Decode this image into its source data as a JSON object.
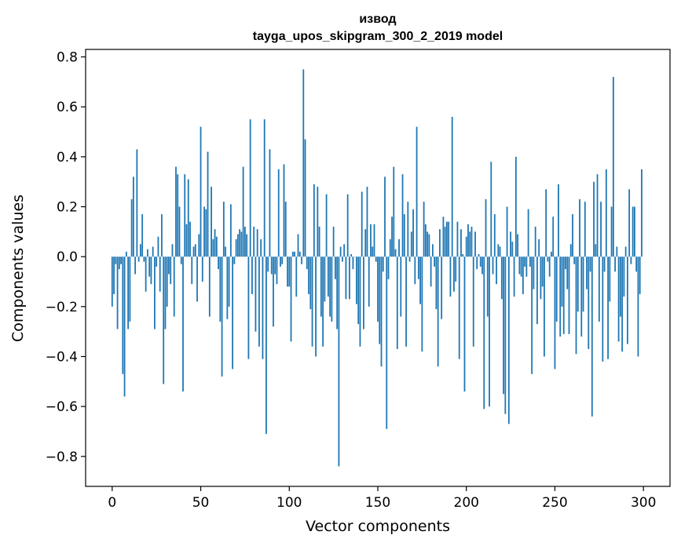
{
  "chart_data": {
    "type": "bar",
    "title": "извод",
    "subtitle": "tayga_upos_skipgram_300_2_2019 model",
    "xlabel": "Vector components",
    "ylabel": "Components values",
    "xlim": [
      -15,
      315
    ],
    "ylim": [
      -0.92,
      0.83
    ],
    "xticks": [
      0,
      50,
      100,
      150,
      200,
      250,
      300
    ],
    "xtick_labels": [
      "0",
      "50",
      "100",
      "150",
      "200",
      "250",
      "300"
    ],
    "yticks": [
      -0.8,
      -0.6,
      -0.4,
      -0.2,
      0.0,
      0.2,
      0.4,
      0.6,
      0.8
    ],
    "ytick_labels": [
      "−0.8",
      "−0.6",
      "−0.4",
      "−0.2",
      "0.0",
      "0.2",
      "0.4",
      "0.6",
      "0.8"
    ],
    "bar_color": "#1f77b4",
    "grid": false,
    "x": "indices 0..299",
    "values": [
      -0.2,
      -0.15,
      -0.03,
      -0.29,
      -0.05,
      -0.03,
      -0.47,
      -0.56,
      0.02,
      -0.29,
      -0.26,
      0.23,
      0.32,
      -0.07,
      0.43,
      -0.02,
      0.05,
      0.17,
      -0.02,
      -0.14,
      0.03,
      -0.08,
      -0.11,
      0.04,
      -0.29,
      -0.04,
      0.08,
      -0.14,
      0.17,
      -0.51,
      -0.29,
      -0.2,
      -0.07,
      -0.11,
      0.05,
      -0.24,
      0.36,
      0.33,
      0.2,
      -0.03,
      -0.54,
      0.33,
      0.13,
      0.31,
      0.14,
      -0.11,
      0.04,
      0.05,
      -0.18,
      0.09,
      0.52,
      -0.1,
      0.2,
      0.19,
      0.42,
      -0.24,
      0.28,
      0.07,
      0.11,
      0.08,
      -0.05,
      -0.26,
      -0.48,
      0.22,
      0.04,
      -0.25,
      -0.2,
      0.21,
      -0.45,
      -0.03,
      0.07,
      0.09,
      0.11,
      0.1,
      0.36,
      0.12,
      0.09,
      -0.41,
      0.55,
      -0.15,
      0.12,
      -0.3,
      0.11,
      -0.36,
      0.07,
      -0.41,
      0.55,
      -0.71,
      -0.06,
      0.43,
      -0.07,
      -0.28,
      -0.07,
      -0.11,
      0.35,
      -0.04,
      -0.03,
      0.37,
      0.22,
      -0.12,
      -0.12,
      -0.34,
      0.02,
      0.02,
      -0.16,
      0.09,
      0.02,
      -0.03,
      0.75,
      0.47,
      -0.05,
      -0.15,
      -0.21,
      -0.36,
      0.29,
      -0.4,
      0.28,
      0.12,
      -0.24,
      -0.36,
      -0.18,
      0.25,
      -0.16,
      -0.24,
      -0.26,
      0.12,
      -0.09,
      -0.29,
      -0.84,
      0.04,
      -0.02,
      0.05,
      -0.17,
      0.25,
      -0.17,
      0.01,
      -0.05,
      0.0,
      -0.19,
      -0.27,
      -0.36,
      0.26,
      -0.29,
      0.11,
      0.28,
      -0.2,
      0.13,
      0.04,
      0.13,
      -0.02,
      -0.26,
      -0.35,
      -0.44,
      -0.06,
      0.32,
      -0.69,
      -0.09,
      0.07,
      0.16,
      0.36,
      0.03,
      -0.37,
      0.07,
      -0.24,
      0.33,
      0.17,
      -0.36,
      0.22,
      -0.02,
      0.1,
      0.19,
      -0.11,
      0.52,
      -0.09,
      -0.19,
      -0.38,
      0.22,
      0.13,
      0.1,
      0.09,
      -0.12,
      0.05,
      -0.04,
      -0.21,
      -0.44,
      0.11,
      -0.25,
      0.16,
      0.12,
      0.14,
      0.14,
      -0.16,
      0.56,
      -0.14,
      -0.1,
      0.14,
      -0.41,
      0.11,
      0.01,
      -0.54,
      0.08,
      0.13,
      0.1,
      0.12,
      -0.36,
      0.1,
      -0.05,
      0.01,
      -0.04,
      -0.07,
      -0.61,
      0.23,
      -0.24,
      -0.6,
      0.38,
      -0.07,
      0.17,
      -0.11,
      0.05,
      0.04,
      -0.17,
      -0.55,
      -0.63,
      0.2,
      -0.67,
      0.1,
      0.06,
      -0.16,
      0.4,
      0.09,
      -0.07,
      -0.08,
      -0.15,
      -0.04,
      -0.08,
      0.19,
      -0.04,
      -0.47,
      -0.13,
      0.12,
      -0.27,
      0.07,
      -0.17,
      -0.12,
      -0.4,
      0.27,
      -0.02,
      -0.08,
      0.02,
      0.16,
      -0.45,
      -0.26,
      0.29,
      -0.32,
      -0.2,
      -0.31,
      -0.05,
      -0.13,
      -0.31,
      0.05,
      0.17,
      -0.03,
      -0.39,
      -0.22,
      0.23,
      -0.32,
      -0.22,
      0.22,
      -0.13,
      -0.37,
      -0.06,
      -0.64,
      0.3,
      0.05,
      0.33,
      -0.26,
      0.22,
      -0.42,
      -0.06,
      0.35,
      -0.41,
      -0.18,
      0.2,
      0.72,
      -0.06,
      0.04,
      -0.34,
      -0.24,
      -0.38,
      -0.16,
      0.04,
      -0.35,
      0.27,
      -0.03,
      0.2,
      0.2,
      -0.06,
      -0.4,
      -0.15,
      0.35
    ]
  }
}
